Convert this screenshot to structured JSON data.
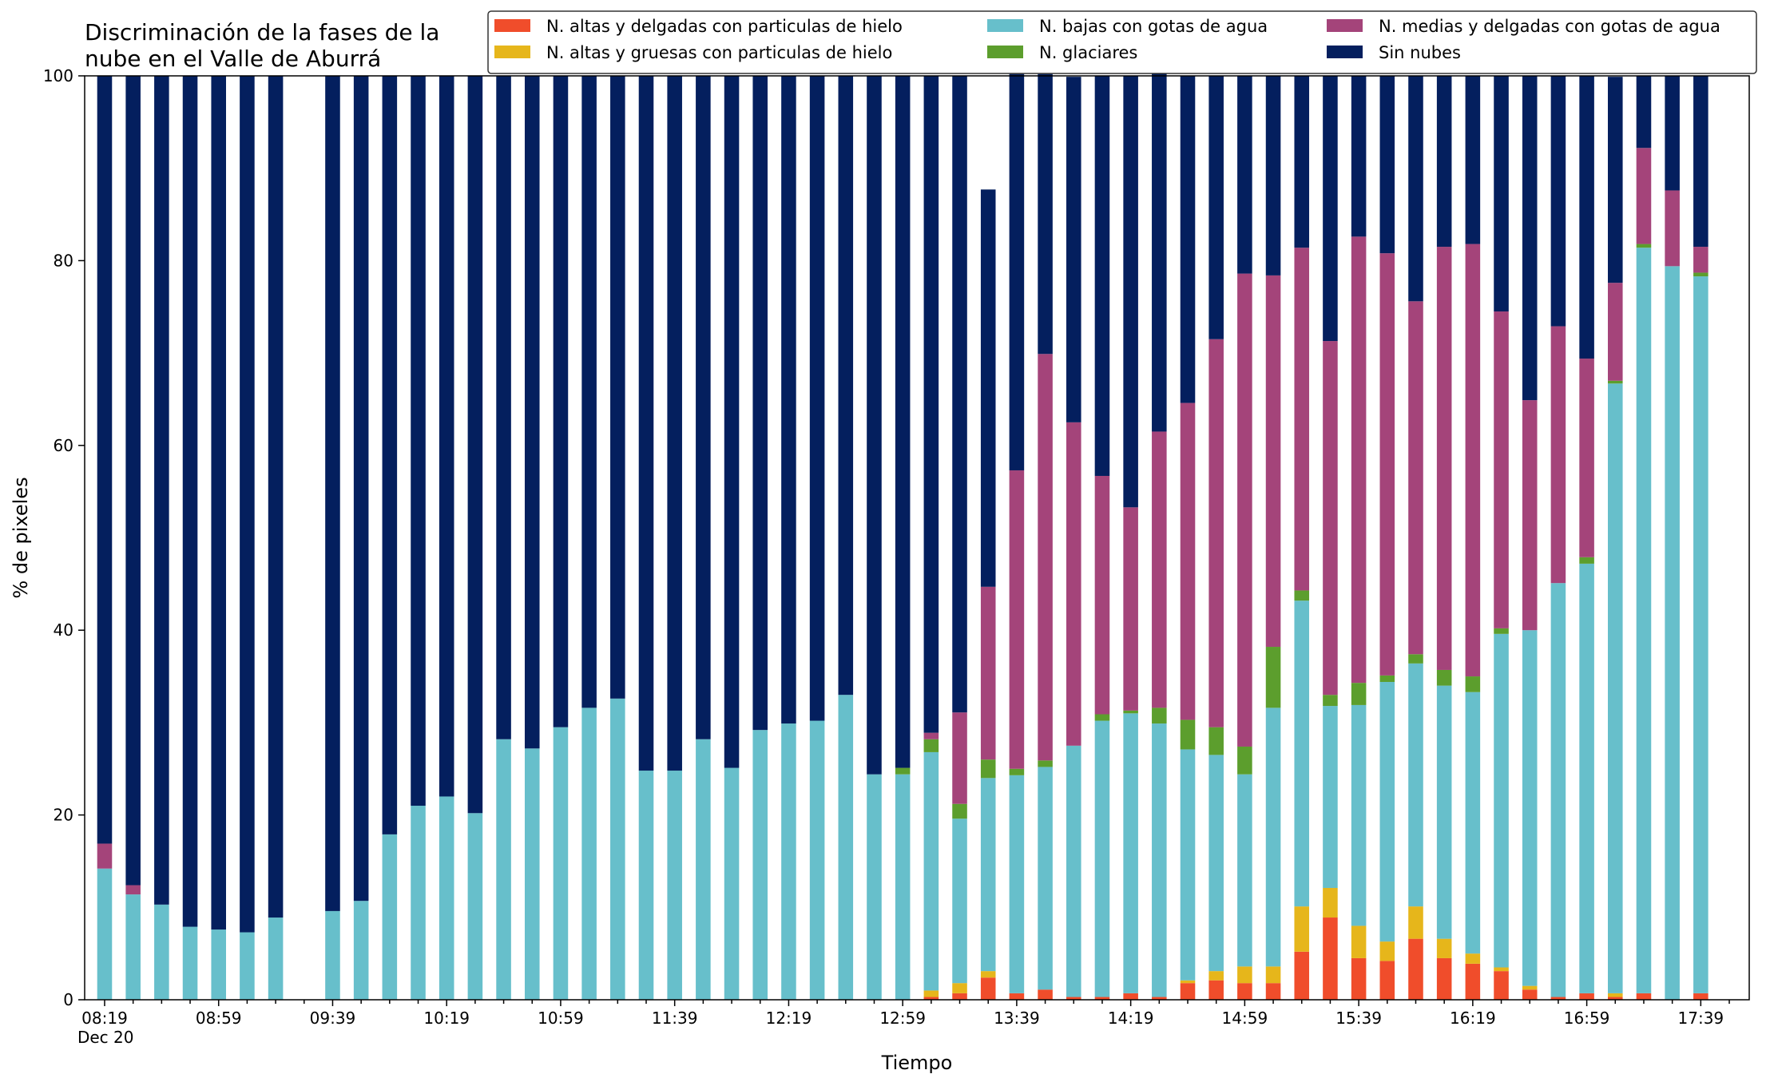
{
  "chart_data": {
    "type": "bar",
    "stacked": true,
    "title": "Discriminación de la fases de la\nnube en el Valle de Aburrá",
    "xlabel": "Tiempo",
    "ylabel": "% de pixeles",
    "ylim": [
      0,
      100
    ],
    "yticks": [
      0,
      20,
      40,
      60,
      80,
      100
    ],
    "grid": false,
    "legend_position": "top-right",
    "x_date_label": "Dec 20",
    "x_start": "08:19",
    "x_step_minutes": 10,
    "xtick_labels": [
      "08:19",
      "08:59",
      "09:39",
      "10:19",
      "10:59",
      "11:39",
      "12:19",
      "12:59",
      "13:39",
      "14:19",
      "14:59",
      "15:39",
      "16:19",
      "16:59",
      "17:39"
    ],
    "categories": [
      "08:19",
      "08:29",
      "08:39",
      "08:49",
      "08:59",
      "09:09",
      "09:19",
      "09:29",
      "09:39",
      "09:49",
      "09:59",
      "10:09",
      "10:19",
      "10:29",
      "10:39",
      "10:49",
      "10:59",
      "11:09",
      "11:19",
      "11:29",
      "11:39",
      "11:49",
      "11:59",
      "12:09",
      "12:19",
      "12:29",
      "12:39",
      "12:49",
      "12:59",
      "13:09",
      "13:19",
      "13:29",
      "13:39",
      "13:49",
      "13:59",
      "14:09",
      "14:19",
      "14:29",
      "14:39",
      "14:49",
      "14:59",
      "15:09",
      "15:19",
      "15:29",
      "15:39",
      "15:49",
      "15:59",
      "16:09",
      "16:19",
      "16:29",
      "16:39",
      "16:49",
      "16:59",
      "17:09",
      "17:19",
      "17:29",
      "17:39",
      "17:49"
    ],
    "series": [
      {
        "name": "N. altas y delgadas con particulas de hielo",
        "color": "#f04d2b",
        "values": [
          0,
          0,
          0,
          0,
          0,
          0,
          0,
          null,
          0,
          0,
          0,
          0,
          0,
          0,
          0,
          0,
          0,
          0,
          0,
          0,
          0,
          0,
          0,
          0,
          0,
          0,
          0,
          0,
          0,
          0.3,
          0.7,
          2.4,
          0.7,
          1.1,
          0.3,
          0.3,
          0.7,
          0.3,
          1.8,
          2.1,
          1.8,
          1.8,
          5.2,
          8.9,
          4.5,
          4.2,
          6.6,
          4.5,
          3.9,
          3.1,
          1.1,
          0.3,
          0.7,
          0.3,
          0.7,
          0,
          0.7,
          0
        ]
      },
      {
        "name": "N. altas y gruesas con particulas de hielo",
        "color": "#e6b61b",
        "values": [
          0,
          0,
          0,
          0,
          0,
          0,
          0,
          null,
          0,
          0,
          0,
          0,
          0,
          0,
          0,
          0,
          0,
          0,
          0,
          0,
          0,
          0,
          0,
          0,
          0,
          0,
          0,
          0,
          0,
          0.7,
          1.1,
          0.7,
          0,
          0,
          0,
          0,
          0,
          0,
          0.3,
          1.0,
          1.8,
          1.8,
          4.9,
          3.2,
          3.5,
          2.1,
          3.5,
          2.1,
          1.1,
          0.4,
          0.4,
          0,
          0,
          0.4,
          0,
          0,
          0,
          0
        ]
      },
      {
        "name": "N. bajas con gotas de agua",
        "color": "#67bfcb",
        "values": [
          14.2,
          11.4,
          10.3,
          7.9,
          7.6,
          7.3,
          8.9,
          null,
          9.6,
          10.7,
          17.9,
          21.0,
          22.0,
          20.2,
          28.2,
          27.2,
          29.5,
          31.6,
          32.6,
          24.8,
          24.8,
          28.2,
          25.1,
          29.2,
          29.9,
          30.2,
          33.0,
          24.4,
          24.4,
          25.8,
          17.8,
          20.9,
          23.6,
          24.1,
          27.2,
          29.9,
          30.3,
          29.6,
          25.0,
          23.4,
          20.8,
          28.0,
          33.1,
          19.7,
          23.9,
          28.1,
          26.3,
          27.4,
          28.3,
          36.1,
          38.5,
          44.8,
          46.5,
          66.0,
          80.7,
          79.4,
          77.6,
          0
        ]
      },
      {
        "name": "N. glaciares",
        "color": "#5c9e2d",
        "values": [
          0,
          0,
          0,
          0,
          0,
          0,
          0,
          null,
          0,
          0,
          0,
          0,
          0,
          0,
          0,
          0,
          0,
          0,
          0,
          0,
          0,
          0,
          0,
          0,
          0,
          0,
          0,
          0,
          0.7,
          1.4,
          1.6,
          2.0,
          0.7,
          0.7,
          0,
          0.7,
          0.3,
          1.7,
          3.2,
          3.0,
          3.0,
          6.6,
          1.1,
          1.2,
          2.4,
          0.7,
          1.0,
          1.7,
          1.7,
          0.6,
          0,
          0,
          0.7,
          0.3,
          0.4,
          0,
          0.4,
          0
        ]
      },
      {
        "name": "N. medias y delgadas con gotas de agua",
        "color": "#a4447a",
        "values": [
          2.7,
          1.0,
          0,
          0,
          0,
          0,
          0,
          null,
          0,
          0,
          0,
          0,
          0,
          0,
          0,
          0,
          0,
          0,
          0,
          0,
          0,
          0,
          0,
          0,
          0,
          0,
          0,
          0,
          0,
          0.7,
          9.9,
          18.7,
          32.3,
          44.0,
          35.0,
          25.8,
          22.0,
          29.9,
          34.3,
          42.0,
          51.2,
          40.2,
          37.1,
          38.3,
          48.3,
          45.7,
          38.2,
          45.8,
          46.8,
          34.3,
          24.9,
          27.8,
          21.5,
          10.6,
          10.4,
          8.2,
          2.8,
          0
        ]
      },
      {
        "name": "Sin nubes",
        "color": "#041f5e",
        "values": [
          83.1,
          87.6,
          89.7,
          92.1,
          92.4,
          92.7,
          91.1,
          null,
          90.4,
          89.3,
          82.1,
          79.0,
          78.0,
          79.8,
          71.8,
          72.8,
          70.5,
          68.4,
          67.4,
          75.2,
          75.2,
          71.8,
          74.9,
          70.8,
          70.1,
          69.8,
          67.0,
          75.6,
          74.9,
          71.1,
          68.9,
          43.0,
          42.9,
          30.3,
          37.4,
          43.3,
          46.7,
          38.8,
          35.4,
          28.5,
          21.4,
          21.6,
          18.6,
          28.7,
          17.4,
          19.2,
          24.4,
          18.5,
          18.2,
          25.5,
          35.1,
          27.1,
          30.6,
          22.3,
          7.8,
          12.4,
          18.5,
          0
        ]
      }
    ]
  }
}
